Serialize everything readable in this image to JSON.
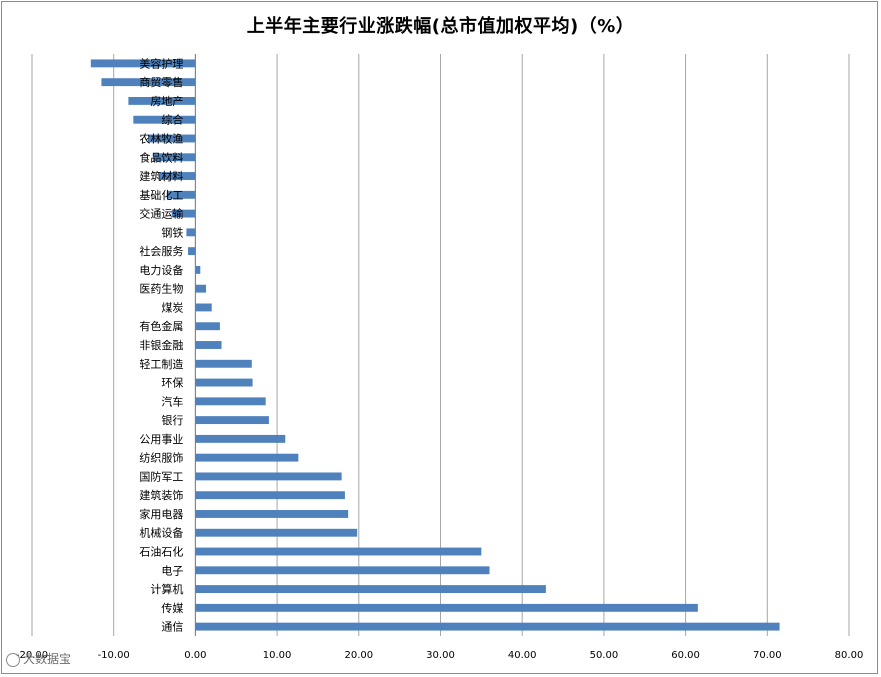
{
  "chart_data": {
    "type": "bar",
    "orientation": "horizontal",
    "title": "上半年主要行业涨跌幅(总市值加权平均)（%）",
    "xlim": [
      -20,
      80
    ],
    "x_ticks": [
      "-20.00",
      "-10.00",
      "0.00",
      "10.00",
      "20.00",
      "30.00",
      "40.00",
      "50.00",
      "60.00",
      "70.00",
      "80.00"
    ],
    "grid": "vertical",
    "bar_color": "#4f81bd",
    "categories": [
      "美容护理",
      "商贸零售",
      "房地产",
      "综合",
      "农林牧渔",
      "食品饮料",
      "建筑材料",
      "基础化工",
      "交通运输",
      "钢铁",
      "社会服务",
      "电力设备",
      "医药生物",
      "煤炭",
      "有色金属",
      "非银金融",
      "轻工制造",
      "环保",
      "汽车",
      "银行",
      "公用事业",
      "纺织服饰",
      "国防军工",
      "建筑装饰",
      "家用电器",
      "机械设备",
      "石油石化",
      "电子",
      "计算机",
      "传媒",
      "通信"
    ],
    "values": [
      -12.8,
      -11.5,
      -8.2,
      -7.6,
      -5.8,
      -5.2,
      -4.4,
      -3.5,
      -2.9,
      -1.1,
      -0.9,
      0.6,
      1.3,
      2.0,
      3.0,
      3.2,
      6.9,
      7.0,
      8.6,
      9.0,
      11.0,
      12.6,
      17.9,
      18.3,
      18.7,
      19.8,
      35.0,
      36.0,
      42.9,
      61.5,
      71.5
    ]
  },
  "watermark_text": "大数据宝"
}
